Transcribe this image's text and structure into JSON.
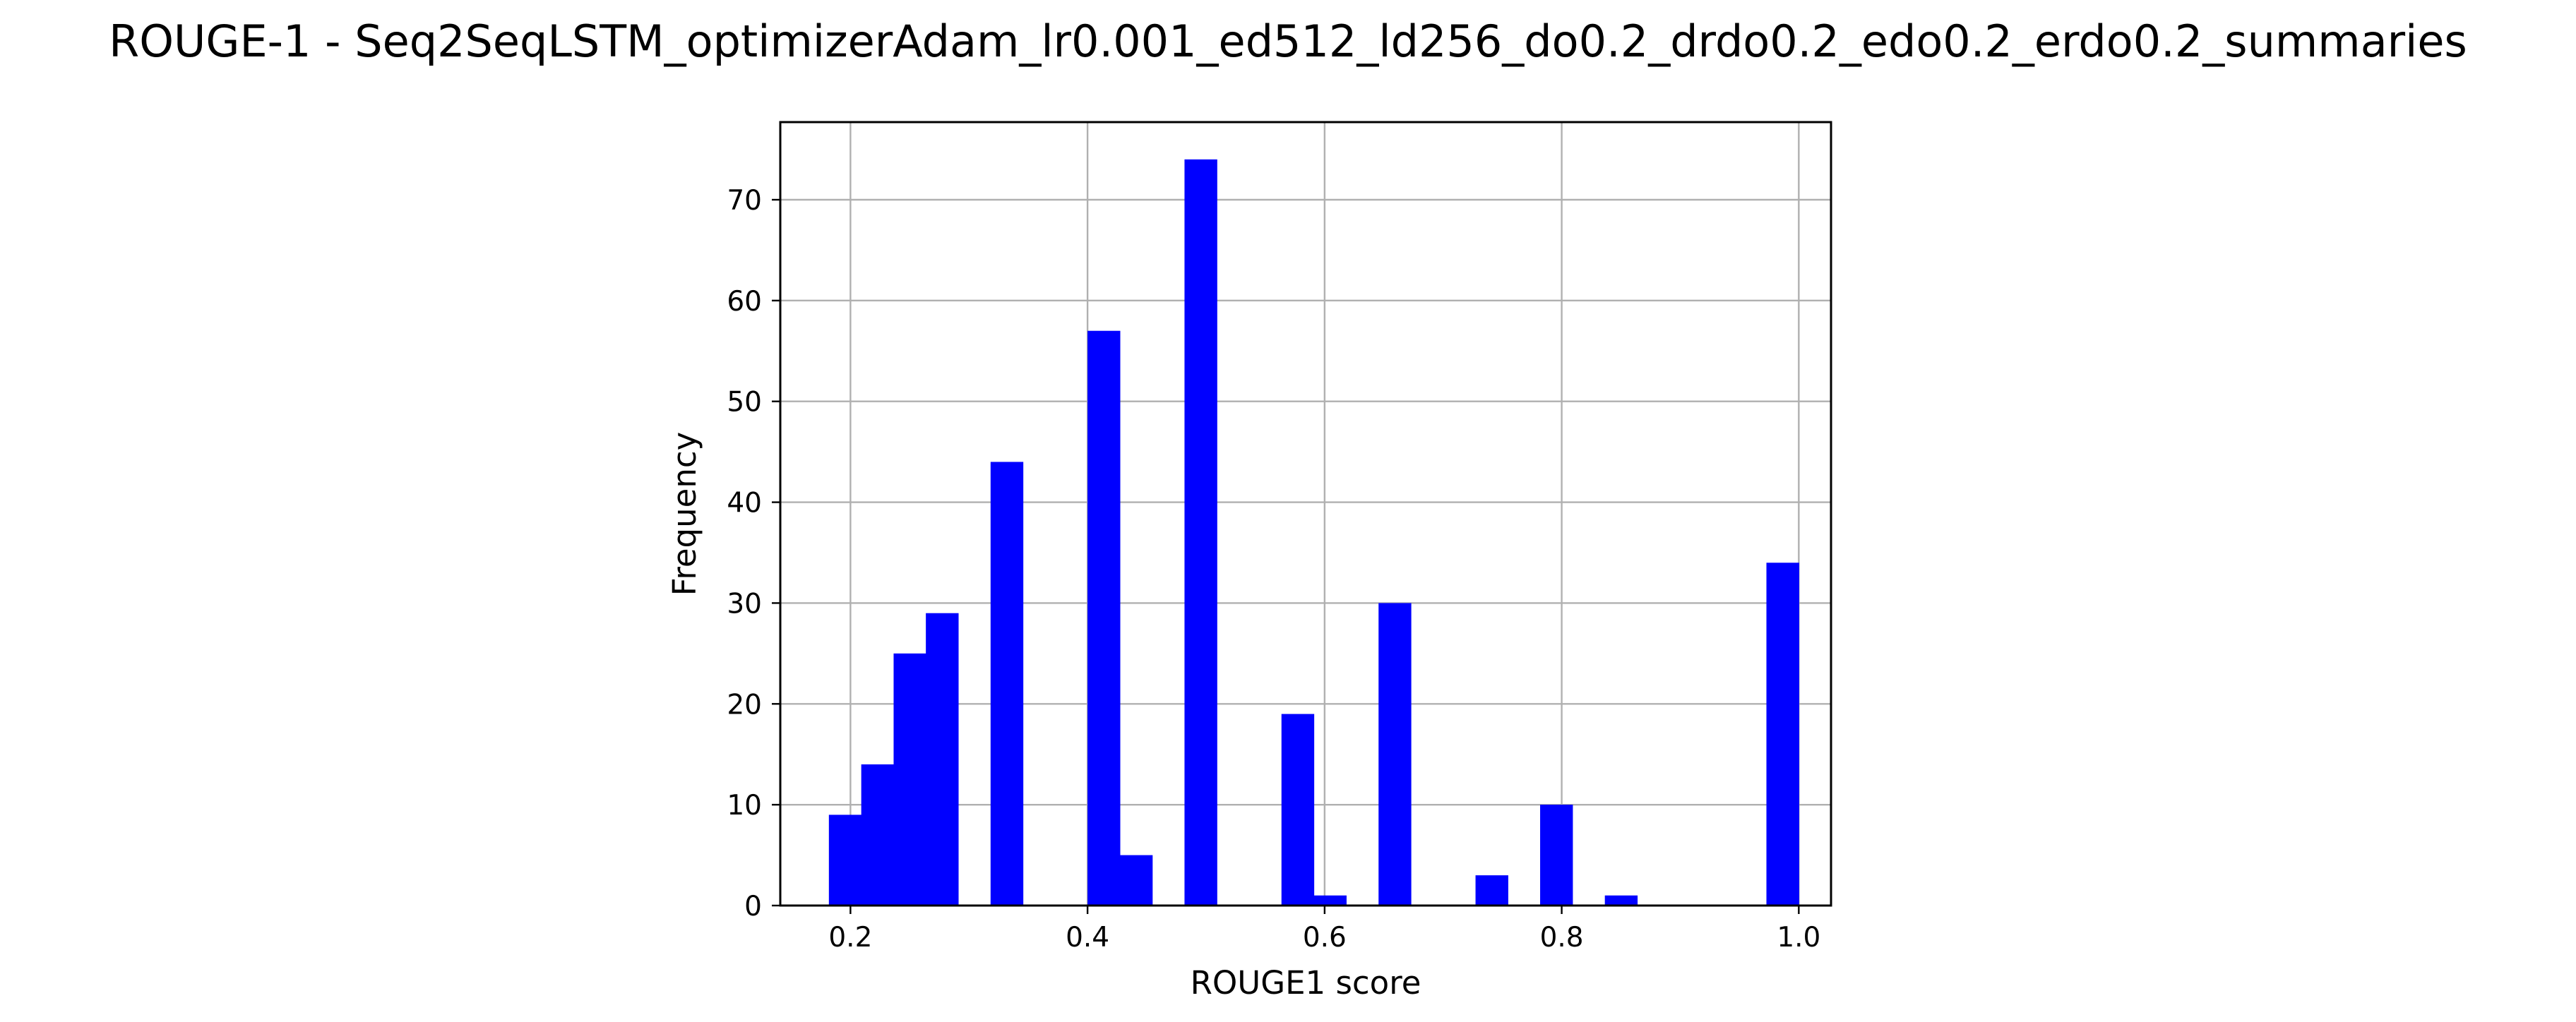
{
  "figure": {
    "title": "ROUGE-1 - Seq2SeqLSTM_optimizerAdam_lr0.001_ed512_ld256_do0.2_drdo0.2_edo0.2_erdo0.2_summaries"
  },
  "chart_data": {
    "type": "bar",
    "subtype": "histogram",
    "title": "ROUGE-1 - Seq2SeqLSTM_optimizerAdam_lr0.001_ed512_ld256_do0.2_drdo0.2_edo0.2_erdo0.2_summaries",
    "xlabel": "ROUGE1 score",
    "ylabel": "Frequency",
    "bar_color": "#0000ff",
    "grid": true,
    "xlim": [
      0.1408,
      1.0272
    ],
    "ylim": [
      0,
      77.7
    ],
    "bin_width": 0.02727,
    "bins": [
      {
        "x0": 0.1818,
        "height": 9
      },
      {
        "x0": 0.2091,
        "height": 14
      },
      {
        "x0": 0.2364,
        "height": 25
      },
      {
        "x0": 0.2636,
        "height": 29
      },
      {
        "x0": 0.2909,
        "height": 0
      },
      {
        "x0": 0.3182,
        "height": 44
      },
      {
        "x0": 0.3455,
        "height": 0
      },
      {
        "x0": 0.3727,
        "height": 0
      },
      {
        "x0": 0.4,
        "height": 57
      },
      {
        "x0": 0.4273,
        "height": 5
      },
      {
        "x0": 0.4545,
        "height": 0
      },
      {
        "x0": 0.4818,
        "height": 74
      },
      {
        "x0": 0.5091,
        "height": 0
      },
      {
        "x0": 0.5364,
        "height": 0
      },
      {
        "x0": 0.5636,
        "height": 19
      },
      {
        "x0": 0.5909,
        "height": 1
      },
      {
        "x0": 0.6182,
        "height": 0
      },
      {
        "x0": 0.6455,
        "height": 30
      },
      {
        "x0": 0.6727,
        "height": 0
      },
      {
        "x0": 0.7,
        "height": 0
      },
      {
        "x0": 0.7273,
        "height": 3
      },
      {
        "x0": 0.7545,
        "height": 0
      },
      {
        "x0": 0.7818,
        "height": 10
      },
      {
        "x0": 0.8091,
        "height": 0
      },
      {
        "x0": 0.8364,
        "height": 1
      },
      {
        "x0": 0.8636,
        "height": 0
      },
      {
        "x0": 0.8909,
        "height": 0
      },
      {
        "x0": 0.9182,
        "height": 0
      },
      {
        "x0": 0.9455,
        "height": 0
      },
      {
        "x0": 0.9727,
        "height": 34
      }
    ],
    "x_ticks": [
      {
        "value": 0.2,
        "label": "0.2"
      },
      {
        "value": 0.4,
        "label": "0.4"
      },
      {
        "value": 0.6,
        "label": "0.6"
      },
      {
        "value": 0.8,
        "label": "0.8"
      },
      {
        "value": 1.0,
        "label": "1.0"
      }
    ],
    "y_ticks": [
      {
        "value": 0,
        "label": "0"
      },
      {
        "value": 10,
        "label": "10"
      },
      {
        "value": 20,
        "label": "20"
      },
      {
        "value": 30,
        "label": "30"
      },
      {
        "value": 40,
        "label": "40"
      },
      {
        "value": 50,
        "label": "50"
      },
      {
        "value": 60,
        "label": "60"
      },
      {
        "value": 70,
        "label": "70"
      }
    ]
  }
}
